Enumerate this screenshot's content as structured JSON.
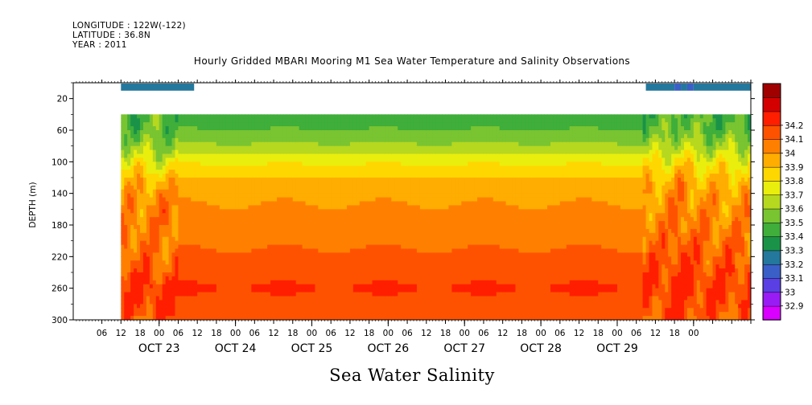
{
  "header": {
    "longitude": "LONGITUDE : 122W(-122)",
    "latitude": "LATITUDE : 36.8N",
    "year": "YEAR : 2011"
  },
  "chart_data": {
    "type": "heatmap",
    "title": "Hourly Gridded MBARI Mooring M1 Sea Water Temperature and Salinity Observations",
    "subtitle": "Sea Water Salinity",
    "ylabel": "DEPTH (m)",
    "xlabel": "",
    "y_inverted": true,
    "ylim": [
      300,
      0
    ],
    "y_ticks": [
      20,
      60,
      100,
      140,
      180,
      220,
      260,
      300
    ],
    "x_range_hours": [
      -27,
      186
    ],
    "x_tick_labels": [
      "06",
      "12",
      "18",
      "00",
      "06",
      "12",
      "18",
      "00",
      "06",
      "12",
      "18",
      "00",
      "06",
      "12",
      "18",
      "00",
      "06",
      "12",
      "18",
      "00",
      "06",
      "12",
      "18",
      "00",
      "06",
      "12",
      "18",
      "00",
      "06",
      "12",
      "18",
      "00"
    ],
    "day_labels": [
      "OCT 23",
      "OCT 24",
      "OCT 25",
      "OCT 26",
      "OCT 27",
      "OCT 28",
      "OCT 29"
    ],
    "colorbar": {
      "levels": [
        32.9,
        33.0,
        33.1,
        33.2,
        33.3,
        33.4,
        33.5,
        33.6,
        33.7,
        33.8,
        33.9,
        34.0,
        34.1,
        34.2
      ],
      "labels": [
        "32.9",
        "33",
        "33.1",
        "33.2",
        "33.3",
        "33.4",
        "33.5",
        "33.6",
        "33.7",
        "33.8",
        "33.9",
        "34",
        "34.1",
        "34.2"
      ],
      "colors": [
        "#d900ff",
        "#9a1cf5",
        "#5a3fe4",
        "#3a5fc7",
        "#24789d",
        "#1a9348",
        "#3fae3a",
        "#79c431",
        "#b6d81f",
        "#eaee0c",
        "#ffd700",
        "#ffad00",
        "#ff8000",
        "#ff5200",
        "#ff1e00",
        "#d40000",
        "#a00000"
      ]
    },
    "surface_bins": [
      {
        "start": -12,
        "end": 11,
        "value": 33.2
      },
      {
        "start": 153,
        "end": 162,
        "value": 33.2
      },
      {
        "start": 162,
        "end": 164,
        "value": 33.1
      },
      {
        "start": 164,
        "end": 166,
        "value": 33.2
      },
      {
        "start": 166,
        "end": 168,
        "value": 33.1
      },
      {
        "start": 168,
        "end": 200,
        "value": 33.25
      },
      {
        "start": 208,
        "end": 218,
        "value": 33.2
      }
    ],
    "depth_profile": [
      {
        "depth": 40,
        "value": 33.45
      },
      {
        "depth": 60,
        "value": 33.5
      },
      {
        "depth": 80,
        "value": 33.62
      },
      {
        "depth": 100,
        "value": 33.78
      },
      {
        "depth": 120,
        "value": 33.9
      },
      {
        "depth": 140,
        "value": 33.98
      },
      {
        "depth": 180,
        "value": 34.04
      },
      {
        "depth": 220,
        "value": 34.12
      },
      {
        "depth": 260,
        "value": 34.21
      },
      {
        "depth": 300,
        "value": 34.12
      }
    ]
  }
}
